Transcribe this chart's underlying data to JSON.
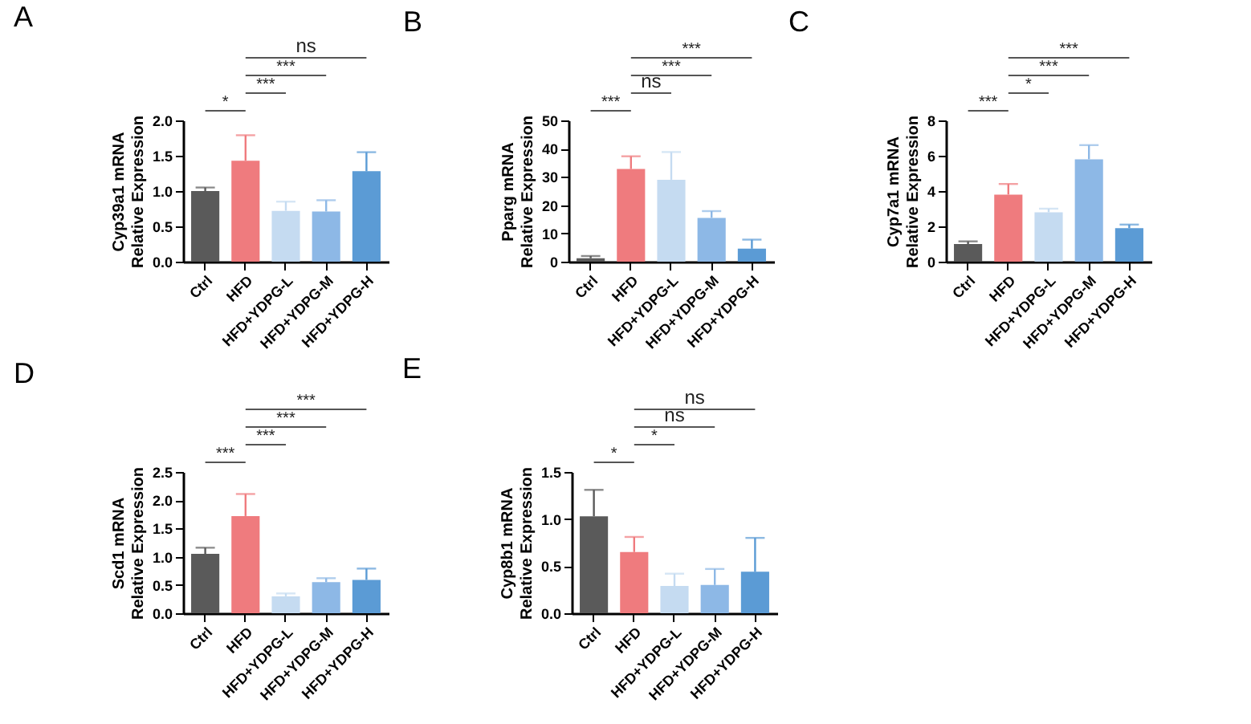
{
  "chart_data": [
    {
      "type": "bar",
      "title": "A",
      "ylabel": "Cyp39a1 mRNA\nRelative Expression",
      "categories": [
        "Ctrl",
        "HFD",
        "HFD+YDPG-L",
        "HFD+YDPG-M",
        "HFD+YDPG-H"
      ],
      "values": [
        1.0,
        1.43,
        0.72,
        0.71,
        1.28
      ],
      "errors": [
        [
          1.0,
          1.05
        ],
        [
          1.43,
          1.79
        ],
        [
          0.72,
          0.85
        ],
        [
          0.71,
          0.87
        ],
        [
          1.28,
          1.55
        ]
      ],
      "colors": [
        "#5a5a5a",
        "#ef7b7e",
        "#c5dbf1",
        "#8db8e6",
        "#5b9bd5"
      ],
      "ylim": [
        0,
        2
      ],
      "yticks": [
        {
          "value": 0,
          "label": "0.0"
        },
        {
          "value": 0.5,
          "label": "0.5"
        },
        {
          "value": 1,
          "label": "1.0"
        },
        {
          "value": 1.5,
          "label": "1.5"
        },
        {
          "value": 2,
          "label": "2.0"
        }
      ],
      "annotations": [
        "*",
        "***",
        "***",
        "ns"
      ]
    },
    {
      "type": "bar",
      "title": "B",
      "ylabel": "Pparg mRNA\nRelative Expression",
      "categories": [
        "Ctrl",
        "HFD",
        "HFD+YDPG-L",
        "HFD+YDPG-M",
        "HFD+YDPG-H"
      ],
      "values": [
        1.2,
        32.8,
        29,
        15.5,
        4.6
      ],
      "errors": [
        [
          1.2,
          2.0
        ],
        [
          32.8,
          37.3
        ],
        [
          29,
          38.8
        ],
        [
          15.5,
          17.9
        ],
        [
          4.6,
          7.8
        ]
      ],
      "colors": [
        "#5a5a5a",
        "#ef7b7e",
        "#c5dbf1",
        "#8db8e6",
        "#5b9bd5"
      ],
      "ylim": [
        0,
        50
      ],
      "yticks": [
        0,
        10,
        20,
        30,
        40,
        50
      ],
      "annotations": [
        "***",
        "ns",
        "***",
        "***"
      ]
    },
    {
      "type": "bar",
      "title": "C",
      "ylabel": "Cyp7a1 mRNA\nRelative Expression",
      "categories": [
        "Ctrl",
        "HFD",
        "HFD+YDPG-L",
        "HFD+YDPG-M",
        "HFD+YDPG-H"
      ],
      "values": [
        1.0,
        3.8,
        2.8,
        5.8,
        1.9
      ],
      "errors": [
        [
          1.0,
          1.15
        ],
        [
          3.8,
          4.4
        ],
        [
          2.8,
          3.0
        ],
        [
          5.8,
          6.6
        ],
        [
          1.9,
          2.1
        ]
      ],
      "colors": [
        "#5a5a5a",
        "#ef7b7e",
        "#c5dbf1",
        "#8db8e6",
        "#5b9bd5"
      ],
      "ylim": [
        0,
        8
      ],
      "yticks": [
        0,
        2,
        4,
        6,
        8
      ],
      "annotations": [
        "***",
        "*",
        "***",
        "***"
      ]
    },
    {
      "type": "bar",
      "title": "D",
      "ylabel": "Scd1 mRNA\nRelative Expression",
      "categories": [
        "Ctrl",
        "HFD",
        "HFD+YDPG-L",
        "HFD+YDPG-M",
        "HFD+YDPG-H"
      ],
      "values": [
        1.05,
        1.72,
        0.3,
        0.55,
        0.59
      ],
      "errors": [
        [
          1.05,
          1.16
        ],
        [
          1.72,
          2.11
        ],
        [
          0.3,
          0.35
        ],
        [
          0.55,
          0.62
        ],
        [
          0.59,
          0.79
        ]
      ],
      "colors": [
        "#5a5a5a",
        "#ef7b7e",
        "#c5dbf1",
        "#8db8e6",
        "#5b9bd5"
      ],
      "ylim": [
        0,
        2.5
      ],
      "yticks": [
        {
          "value": 0,
          "label": "0.0"
        },
        {
          "value": 0.5,
          "label": "0.5"
        },
        {
          "value": 1,
          "label": "1.0"
        },
        {
          "value": 1.5,
          "label": "1.5"
        },
        {
          "value": 2,
          "label": "2.0"
        },
        {
          "value": 2.5,
          "label": "2.5"
        }
      ],
      "annotations": [
        "***",
        "***",
        "***",
        "***"
      ]
    },
    {
      "type": "bar",
      "title": "E",
      "ylabel": "Cyp8b1 mRNA\nRelative Expression",
      "categories": [
        "Ctrl",
        "HFD",
        "HFD+YDPG-L",
        "HFD+YDPG-M",
        "HFD+YDPG-H"
      ],
      "values": [
        1.03,
        0.65,
        0.29,
        0.3,
        0.44
      ],
      "errors": [
        [
          1.03,
          1.31
        ],
        [
          0.65,
          0.81
        ],
        [
          0.29,
          0.42
        ],
        [
          0.3,
          0.47
        ],
        [
          0.44,
          0.8
        ]
      ],
      "colors": [
        "#5a5a5a",
        "#ef7b7e",
        "#c5dbf1",
        "#8db8e6",
        "#5b9bd5"
      ],
      "ylim": [
        0,
        1.5
      ],
      "yticks": [
        {
          "value": 0,
          "label": "0.0"
        },
        {
          "value": 0.5,
          "label": "0.5"
        },
        {
          "value": 1,
          "label": "1.0"
        },
        {
          "value": 1.5,
          "label": "1.5"
        }
      ],
      "annotations": [
        "*",
        "*",
        "ns",
        "ns"
      ]
    }
  ]
}
